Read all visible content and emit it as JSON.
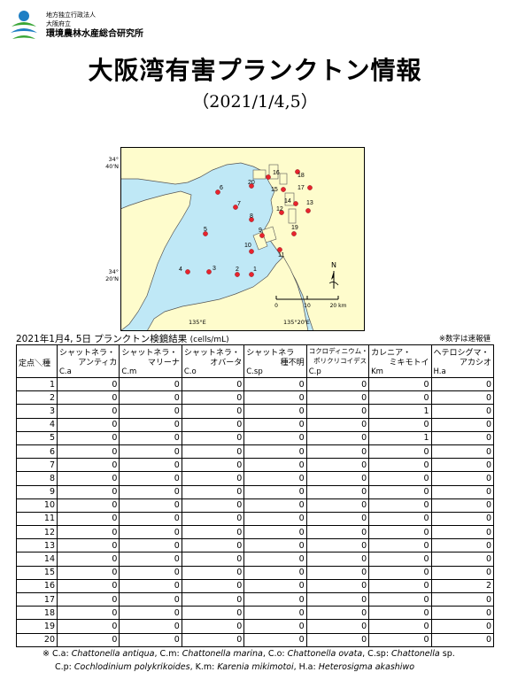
{
  "header": {
    "org_line1": "地方独立行政法人",
    "org_line2": "大阪府立",
    "org_line3": "環境農林水産総合研究所",
    "title": "大阪湾有害プランクトン情報",
    "date": "（2021/1/4,5）"
  },
  "map": {
    "lat_top": "34°\n40'N",
    "lat_bottom": "34°\n20'N",
    "lon_left": "135°E",
    "lon_right": "135°20'E",
    "north": "N",
    "scale": [
      "0",
      "10",
      "20 km"
    ],
    "stations": [
      "1",
      "2",
      "3",
      "4",
      "5",
      "6",
      "7",
      "8",
      "9",
      "10",
      "11",
      "12",
      "13",
      "14",
      "15",
      "16",
      "17",
      "18",
      "19",
      "20"
    ],
    "colors": {
      "land": "#fefccc",
      "sea": "#bfe8f6",
      "station": "#e8232d"
    }
  },
  "caption": {
    "text": "2021年1月4, 5日  プランクトン検鏡結果",
    "unit": "(cells/mL)",
    "note": "※数字は速報値"
  },
  "table": {
    "corner_label": "定点＼種",
    "columns": [
      {
        "n1": "シャットネラ・",
        "n2": "アンティカ",
        "abbr": "C.a"
      },
      {
        "n1": "シャットネラ・",
        "n2": "マリーナ",
        "abbr": "C.m"
      },
      {
        "n1": "シャットネラ・",
        "n2": "オバータ",
        "abbr": "C.o"
      },
      {
        "n1": "シャットネラ",
        "n2": "種不明",
        "abbr": "C.sp"
      },
      {
        "n1": "コクロディニウム・",
        "n2": "ポリクリコイデス",
        "abbr": "C.p"
      },
      {
        "n1": "カレニア・",
        "n2": "ミキモトイ",
        "abbr": "Km"
      },
      {
        "n1": "ヘテロシグマ・",
        "n2": "アカシオ",
        "abbr": "H.a"
      }
    ],
    "rows": [
      {
        "st": "1",
        "v": [
          "0",
          "0",
          "0",
          "0",
          "0",
          "0",
          "0"
        ]
      },
      {
        "st": "2",
        "v": [
          "0",
          "0",
          "0",
          "0",
          "0",
          "0",
          "0"
        ]
      },
      {
        "st": "3",
        "v": [
          "0",
          "0",
          "0",
          "0",
          "0",
          "1",
          "0"
        ]
      },
      {
        "st": "4",
        "v": [
          "0",
          "0",
          "0",
          "0",
          "0",
          "0",
          "0"
        ]
      },
      {
        "st": "5",
        "v": [
          "0",
          "0",
          "0",
          "0",
          "0",
          "1",
          "0"
        ]
      },
      {
        "st": "6",
        "v": [
          "0",
          "0",
          "0",
          "0",
          "0",
          "0",
          "0"
        ]
      },
      {
        "st": "7",
        "v": [
          "0",
          "0",
          "0",
          "0",
          "0",
          "0",
          "0"
        ]
      },
      {
        "st": "8",
        "v": [
          "0",
          "0",
          "0",
          "0",
          "0",
          "0",
          "0"
        ]
      },
      {
        "st": "9",
        "v": [
          "0",
          "0",
          "0",
          "0",
          "0",
          "0",
          "0"
        ]
      },
      {
        "st": "10",
        "v": [
          "0",
          "0",
          "0",
          "0",
          "0",
          "0",
          "0"
        ]
      },
      {
        "st": "11",
        "v": [
          "0",
          "0",
          "0",
          "0",
          "0",
          "0",
          "0"
        ]
      },
      {
        "st": "12",
        "v": [
          "0",
          "0",
          "0",
          "0",
          "0",
          "0",
          "0"
        ]
      },
      {
        "st": "13",
        "v": [
          "0",
          "0",
          "0",
          "0",
          "0",
          "0",
          "0"
        ]
      },
      {
        "st": "14",
        "v": [
          "0",
          "0",
          "0",
          "0",
          "0",
          "0",
          "0"
        ]
      },
      {
        "st": "15",
        "v": [
          "0",
          "0",
          "0",
          "0",
          "0",
          "0",
          "0"
        ]
      },
      {
        "st": "16",
        "v": [
          "0",
          "0",
          "0",
          "0",
          "0",
          "0",
          "2"
        ]
      },
      {
        "st": "17",
        "v": [
          "0",
          "0",
          "0",
          "0",
          "0",
          "0",
          "0"
        ]
      },
      {
        "st": "18",
        "v": [
          "0",
          "0",
          "0",
          "0",
          "0",
          "0",
          "0"
        ]
      },
      {
        "st": "19",
        "v": [
          "0",
          "0",
          "0",
          "0",
          "0",
          "0",
          "0"
        ]
      },
      {
        "st": "20",
        "v": [
          "0",
          "0",
          "0",
          "0",
          "0",
          "0",
          "0"
        ]
      }
    ]
  },
  "footer": {
    "mark": "※",
    "line1": [
      {
        "t": "C.a: ",
        "i": false
      },
      {
        "t": "Chattonella antiqua",
        "i": true
      },
      {
        "t": ", C.m: ",
        "i": false
      },
      {
        "t": "Chattonella marina",
        "i": true
      },
      {
        "t": ", C.o: ",
        "i": false
      },
      {
        "t": "Chattonella ovata",
        "i": true
      },
      {
        "t": ", C.sp: ",
        "i": false
      },
      {
        "t": "Chattonella",
        "i": true
      },
      {
        "t": " sp.",
        "i": false
      }
    ],
    "line2": [
      {
        "t": "C.p: ",
        "i": false
      },
      {
        "t": "Cochlodinium polykrikoides",
        "i": true
      },
      {
        "t": ",  K.m: ",
        "i": false
      },
      {
        "t": "Karenia mikimotoi",
        "i": true
      },
      {
        "t": ",  H.a: ",
        "i": false
      },
      {
        "t": "Heterosigma akashiwo",
        "i": true
      }
    ]
  }
}
